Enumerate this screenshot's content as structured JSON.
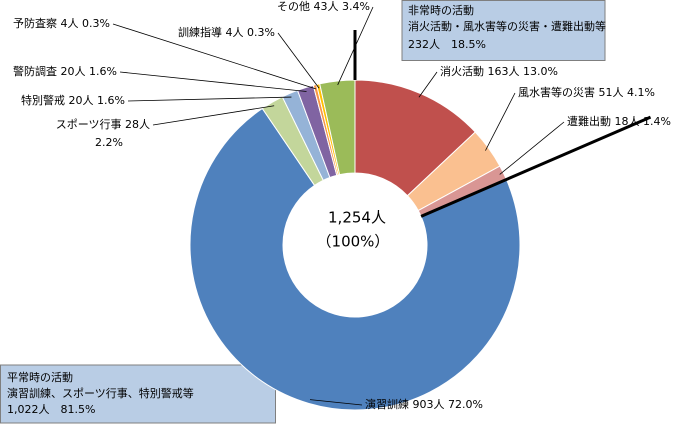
{
  "chart_data": {
    "type": "donut",
    "categories": [
      "消火活動",
      "風水害等の災害",
      "遭難出動",
      "演習訓練",
      "スポーツ行事",
      "特別警戒",
      "警防調査",
      "予防査察",
      "訓練指導",
      "その他"
    ],
    "values": [
      163,
      51,
      18,
      903,
      28,
      20,
      20,
      4,
      4,
      43
    ],
    "value_labels": [
      "163人",
      "51人",
      "18人",
      "903人",
      "28人",
      "20人",
      "20人",
      "4人",
      "4人",
      "43人"
    ],
    "percent_labels": [
      "13.0%",
      "4.1%",
      "1.4%",
      "72.0%",
      "2.2%",
      "1.6%",
      "1.6%",
      "0.3%",
      "0.3%",
      "3.4%"
    ],
    "colors": [
      "#C0504D",
      "#FAC090",
      "#D99694",
      "#4F81BD",
      "#C3D69B",
      "#95B3D7",
      "#8064A2",
      "#F79646",
      "#FFC000",
      "#9BBB59"
    ],
    "total": 1254,
    "total_label": "1,254人",
    "total_percent_label": "（100%）",
    "groups": [
      {
        "title": "非常時の活動",
        "detail": "消火活動・風水害等の災害・遭難出動等",
        "summary": "232人　18.5%"
      },
      {
        "title": "平常時の活動",
        "detail": "演習訓練、スポーツ行事、特別警戒等",
        "summary": "1,022人　81.5%"
      }
    ]
  }
}
